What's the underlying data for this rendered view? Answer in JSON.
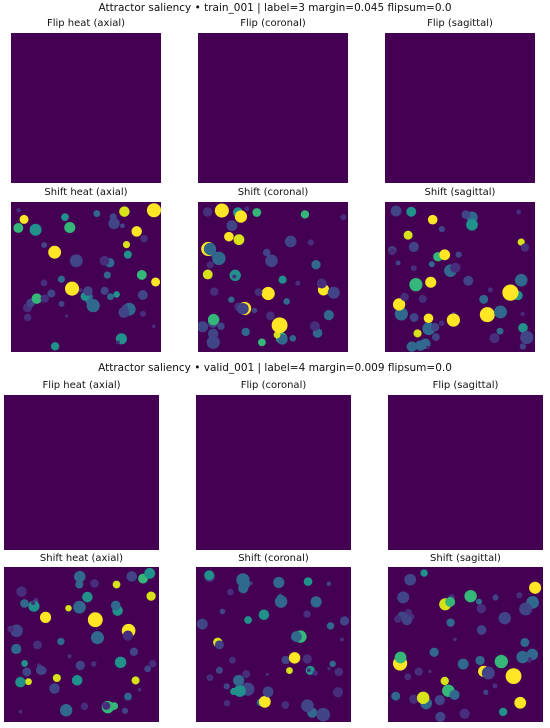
{
  "colors": {
    "background": "#440154",
    "palette": [
      "#3b528b",
      "#414487",
      "#472d7b",
      "#31688e",
      "#21918c",
      "#35b779",
      "#fde725",
      "#d8e219"
    ]
  },
  "figures": [
    {
      "title": "Attractor saliency • train_001  |  label=3  margin=0.045  flipsum=0.0",
      "panels": [
        {
          "title": "Flip heat (axial)",
          "kind": "flip"
        },
        {
          "title": "Flip (coronal)",
          "kind": "flip"
        },
        {
          "title": "Flip (sagittal)",
          "kind": "flip"
        },
        {
          "title": "Shift heat (axial)",
          "kind": "shift",
          "seed": 11
        },
        {
          "title": "Shift (coronal)",
          "kind": "shift",
          "seed": 23
        },
        {
          "title": "Shift (sagittal)",
          "kind": "shift",
          "seed": 37
        }
      ]
    },
    {
      "title": "Attractor saliency • valid_001  |  label=4  margin=0.009  flipsum=0.0",
      "panels": [
        {
          "title": "Flip heat (axial)",
          "kind": "flip"
        },
        {
          "title": "Flip (coronal)",
          "kind": "flip"
        },
        {
          "title": "Flip (sagittal)",
          "kind": "flip"
        },
        {
          "title": "Shift heat (axial)",
          "kind": "shift",
          "seed": 53
        },
        {
          "title": "Shift (coronal)",
          "kind": "shift",
          "seed": 71
        },
        {
          "title": "Shift (sagittal)",
          "kind": "shift",
          "seed": 89
        }
      ]
    }
  ],
  "chart_data": [
    {
      "type": "heatmap",
      "title": "Attractor saliency • train_001  |  label=3  margin=0.045  flipsum=0.0",
      "panels": [
        "Flip heat (axial)",
        "Flip (coronal)",
        "Flip (sagittal)",
        "Shift heat (axial)",
        "Shift (coronal)",
        "Shift (sagittal)"
      ],
      "flip_panels_uniform": true,
      "colormap": "viridis"
    },
    {
      "type": "heatmap",
      "title": "Attractor saliency • valid_001  |  label=4  margin=0.009  flipsum=0.0",
      "panels": [
        "Flip heat (axial)",
        "Flip (coronal)",
        "Flip (sagittal)",
        "Shift heat (axial)",
        "Shift (coronal)",
        "Shift (sagittal)"
      ],
      "flip_panels_uniform": true,
      "colormap": "viridis"
    }
  ]
}
